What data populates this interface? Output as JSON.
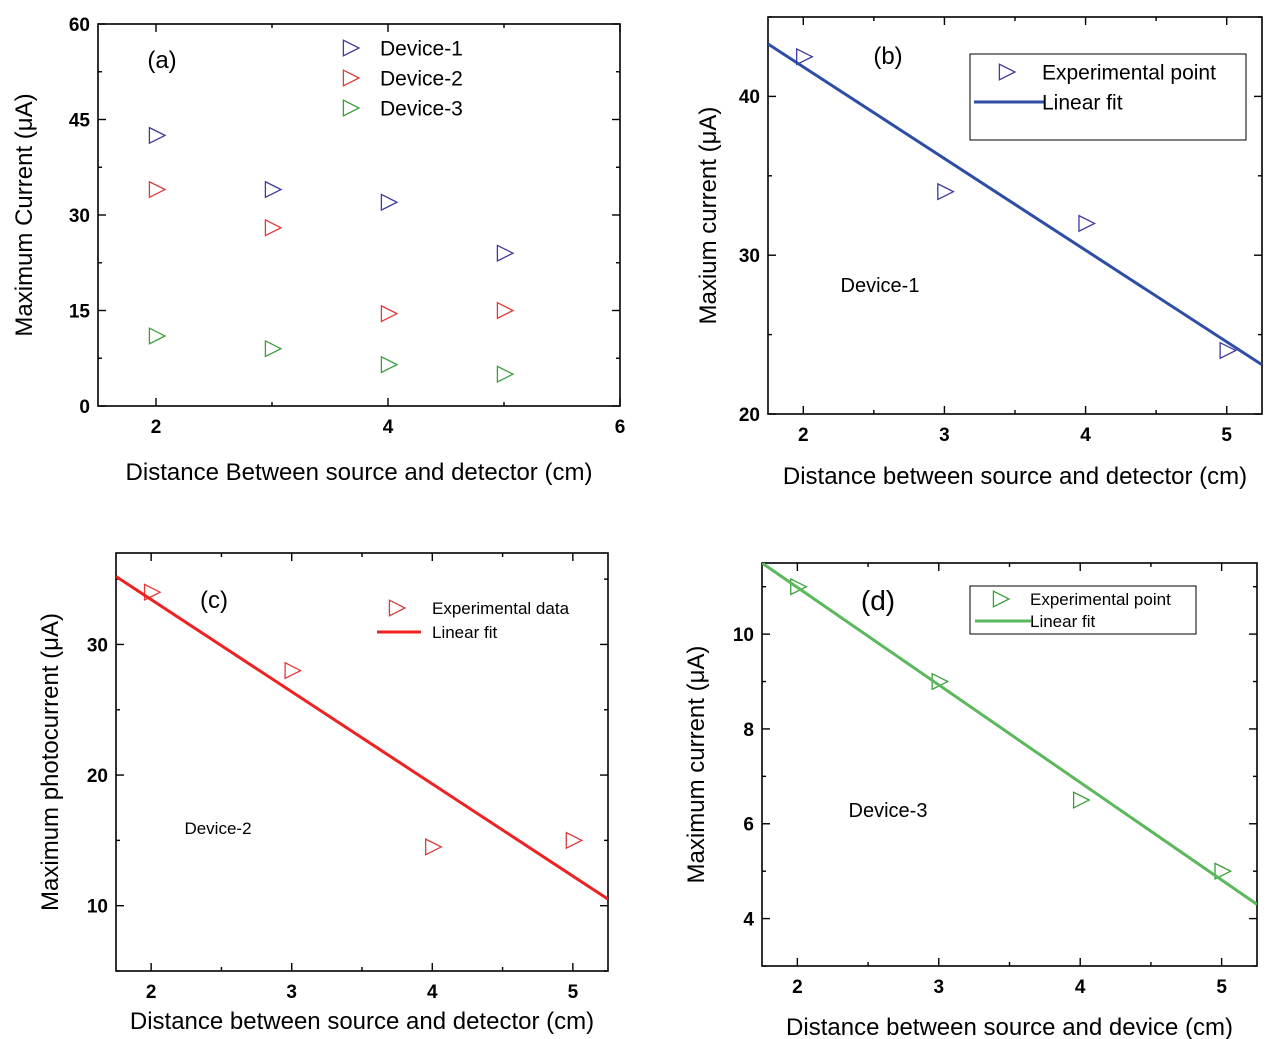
{
  "chart_data": [
    {
      "type": "scatter",
      "panel_label": "(a)",
      "xlabel": "Distance Between source and detector (cm)",
      "ylabel": "Maximum Current (μA)",
      "xlim": [
        1.5,
        6
      ],
      "ylim": [
        0,
        60
      ],
      "xticks": [
        2,
        4,
        6
      ],
      "yticks": [
        0,
        15,
        30,
        45,
        60
      ],
      "marker": "right-triangle-open",
      "legend_position": "top",
      "series": [
        {
          "name": "Device-1",
          "color": "#3a3aa0",
          "x": [
            2,
            3,
            4,
            5
          ],
          "y": [
            42.5,
            34,
            32,
            24
          ]
        },
        {
          "name": "Device-2",
          "color": "#e03a3a",
          "x": [
            2,
            3,
            4,
            5
          ],
          "y": [
            34,
            28,
            14.5,
            15
          ]
        },
        {
          "name": "Device-3",
          "color": "#3aa03a",
          "x": [
            2,
            3,
            4,
            5
          ],
          "y": [
            11,
            9,
            6.5,
            5
          ]
        }
      ]
    },
    {
      "type": "scatter",
      "panel_label": "(b)",
      "annotation": "Device-1",
      "xlabel": "Distance between source and detector (cm)",
      "ylabel": "Maxium current (μA)",
      "xlim": [
        1.75,
        5.25
      ],
      "ylim": [
        20,
        45
      ],
      "xticks": [
        2,
        3,
        4,
        5
      ],
      "yticks": [
        20,
        30,
        40
      ],
      "marker": "right-triangle-open",
      "legend_position": "top-right",
      "series": [
        {
          "name": "Experimental point",
          "kind": "points",
          "color": "#3a3aa0",
          "x": [
            2,
            3,
            4,
            5
          ],
          "y": [
            42.5,
            34,
            32,
            24
          ]
        },
        {
          "name": "Linear fit",
          "kind": "line",
          "color": "#2e4ea6",
          "x": [
            1.75,
            5.25
          ],
          "y": [
            43.3,
            23.1
          ]
        }
      ]
    },
    {
      "type": "scatter",
      "panel_label": "(c)",
      "annotation": "Device-2",
      "xlabel": "Distance between source and detector (cm)",
      "ylabel": "Maximum photocurrent (μA)",
      "xlim": [
        1.75,
        5.25
      ],
      "ylim": [
        5,
        37
      ],
      "xticks": [
        2,
        3,
        4,
        5
      ],
      "yticks": [
        10,
        20,
        30
      ],
      "marker": "right-triangle-open",
      "legend_position": "top-right",
      "series": [
        {
          "name": "Experimental data",
          "kind": "points",
          "color": "#e03a3a",
          "x": [
            2,
            3,
            4,
            5
          ],
          "y": [
            34,
            28,
            14.5,
            15
          ]
        },
        {
          "name": "Linear fit",
          "kind": "line",
          "color": "#ee2222",
          "x": [
            1.75,
            5.25
          ],
          "y": [
            35.2,
            10.5
          ]
        }
      ]
    },
    {
      "type": "scatter",
      "panel_label": "(d)",
      "annotation": "Device-3",
      "xlabel": "Distance between source and device (cm)",
      "ylabel": "Maximum current (μA)",
      "xlim": [
        1.75,
        5.25
      ],
      "ylim": [
        3,
        11.5
      ],
      "xticks": [
        2,
        3,
        4,
        5
      ],
      "yticks": [
        4,
        6,
        8,
        10
      ],
      "marker": "right-triangle-open",
      "legend_position": "top-right",
      "series": [
        {
          "name": "Experimental point",
          "kind": "points",
          "color": "#3aa03a",
          "x": [
            2,
            3,
            4,
            5
          ],
          "y": [
            11,
            9,
            6.5,
            5
          ]
        },
        {
          "name": "Linear fit",
          "kind": "line",
          "color": "#5cb85c",
          "x": [
            1.75,
            5.25
          ],
          "y": [
            11.5,
            4.3
          ]
        }
      ]
    }
  ]
}
